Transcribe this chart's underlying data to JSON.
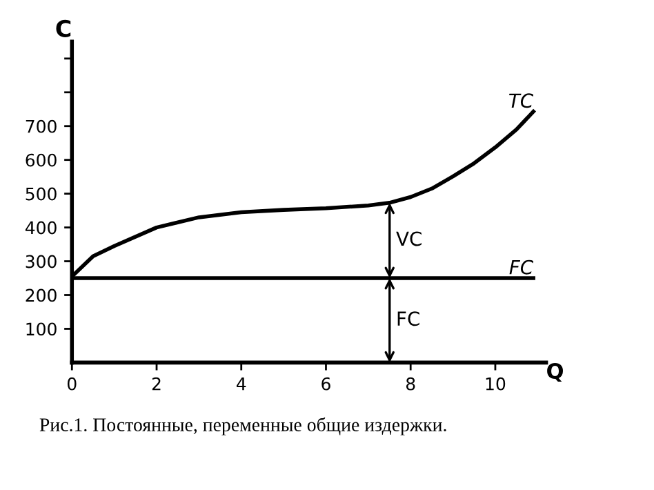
{
  "chart_data": {
    "type": "line",
    "xlabel": "Q",
    "ylabel": "C",
    "x": [
      0,
      0.5,
      1,
      2,
      3,
      4,
      5,
      6,
      7,
      7.5,
      8,
      8.5,
      9,
      9.5,
      10,
      10.5,
      10.9
    ],
    "series": [
      {
        "name": "TC",
        "color": "#000000",
        "values": [
          255,
          315,
          345,
          400,
          430,
          445,
          452,
          457,
          465,
          473,
          490,
          515,
          551,
          590,
          637,
          690,
          743
        ]
      },
      {
        "name": "FC",
        "color": "#000000",
        "x": [
          0,
          10.9
        ],
        "values": [
          250,
          250
        ]
      }
    ],
    "xlim": [
      0,
      11.2
    ],
    "ylim": [
      0,
      950
    ],
    "xticks": [
      0,
      2,
      4,
      6,
      8,
      10
    ],
    "yticks": [
      100,
      200,
      300,
      400,
      500,
      600,
      700,
      {
        "value": 800,
        "label": null
      },
      {
        "value": 900,
        "label": null
      }
    ],
    "grid": false,
    "legend": false,
    "marker": "none",
    "line_style": "solid",
    "annotations": [
      "VC",
      "FC",
      "Рис.1. Постоянные, переменные общие издержки."
    ]
  }
}
